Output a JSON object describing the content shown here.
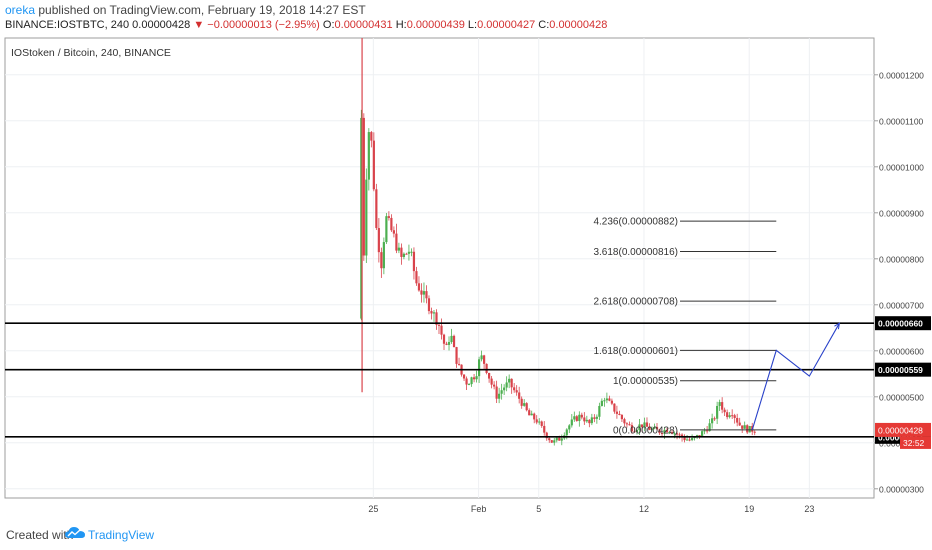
{
  "header": {
    "author": "oreka",
    "published_text": "published on TradingView.com, February 19, 2018 14:27 EST",
    "symbol": "BINANCE:IOSTBTC, 240",
    "last": "0.00000428",
    "change": "▼ −0.00000013 (−2.95%)",
    "o_label": "O:",
    "o_value": "0.00000431",
    "h_label": "H:",
    "h_value": "0.00000439",
    "l_label": "L:",
    "l_value": "0.00000427",
    "c_label": "C:",
    "c_value": "0.00000428"
  },
  "footer": {
    "created_with": "Created with",
    "brand": "TradingView",
    "logo_icon": "tradingview-cloud-icon"
  },
  "chart_data": {
    "type": "candlestick",
    "title": "IOStoken / Bitcoin, 240, BINANCE",
    "ylim": [
      2.8e-06,
      1.28e-05
    ],
    "y_ticks": [
      "0.00000300",
      "0.00000400",
      "0.00000500",
      "0.00000600",
      "0.00000700",
      "0.00000800",
      "0.00000900",
      "0.00001000",
      "0.00001100",
      "0.00001200"
    ],
    "x_ticks": [
      {
        "label": "25",
        "day": 25
      },
      {
        "label": "Feb",
        "day": 32
      },
      {
        "label": "5",
        "day": 36
      },
      {
        "label": "12",
        "day": 43
      },
      {
        "label": "19",
        "day": 50
      },
      {
        "label": "23",
        "day": 54
      }
    ],
    "xlim_day": [
      0.5,
      58.3
    ],
    "price_path": [
      [
        24.2,
        6.7
      ],
      [
        24.3,
        12.7
      ],
      [
        24.5,
        7.8
      ],
      [
        24.8,
        10.9
      ],
      [
        25.1,
        10.4
      ],
      [
        25.3,
        8.8
      ],
      [
        25.7,
        7.9
      ],
      [
        26.0,
        8.9
      ],
      [
        26.5,
        8.5
      ],
      [
        27.0,
        8.0
      ],
      [
        27.6,
        8.2
      ],
      [
        28.0,
        7.5
      ],
      [
        28.5,
        7.2
      ],
      [
        29.0,
        6.9
      ],
      [
        29.5,
        6.6
      ],
      [
        30.0,
        6.0
      ],
      [
        30.3,
        6.4
      ],
      [
        30.6,
        5.9
      ],
      [
        31.0,
        5.5
      ],
      [
        31.4,
        5.3
      ],
      [
        31.7,
        5.4
      ],
      [
        32.0,
        5.5
      ],
      [
        32.3,
        5.9
      ],
      [
        32.6,
        5.7
      ],
      [
        33.0,
        5.3
      ],
      [
        33.4,
        5.0
      ],
      [
        33.8,
        5.2
      ],
      [
        34.2,
        5.3
      ],
      [
        34.6,
        5.1
      ],
      [
        35.0,
        4.9
      ],
      [
        35.5,
        4.6
      ],
      [
        36.0,
        4.5
      ],
      [
        36.6,
        4.2
      ],
      [
        37.1,
        4.0
      ],
      [
        37.6,
        4.1
      ],
      [
        38.0,
        4.3
      ],
      [
        38.5,
        4.5
      ],
      [
        39.0,
        4.6
      ],
      [
        39.5,
        4.4
      ],
      [
        40.0,
        4.6
      ],
      [
        40.5,
        5.0
      ],
      [
        41.0,
        4.8
      ],
      [
        41.5,
        4.6
      ],
      [
        42.0,
        4.4
      ],
      [
        42.5,
        4.3
      ],
      [
        43.0,
        4.4
      ],
      [
        43.6,
        4.3
      ],
      [
        44.2,
        4.25
      ],
      [
        44.8,
        4.3
      ],
      [
        45.3,
        4.2
      ],
      [
        45.8,
        4.1
      ],
      [
        46.3,
        4.05
      ],
      [
        46.8,
        4.15
      ],
      [
        47.3,
        4.3
      ],
      [
        47.8,
        4.5
      ],
      [
        48.2,
        4.9
      ],
      [
        48.6,
        4.6
      ],
      [
        49.0,
        4.7
      ],
      [
        49.5,
        4.4
      ],
      [
        50.0,
        4.3
      ],
      [
        50.4,
        4.28
      ]
    ],
    "last_price": "0.00000428",
    "countdown": "32:52",
    "horizontal_levels": [
      {
        "price": 6.6,
        "label": "0.00000660"
      },
      {
        "price": 5.59,
        "label": "0.00000559"
      },
      {
        "price": 4.13,
        "label": "0.00000413"
      }
    ],
    "fib_levels": [
      {
        "ratio": "4.236",
        "value": 8.82,
        "label": "4.236(0.00000882)"
      },
      {
        "ratio": "3.618",
        "value": 8.16,
        "label": "3.618(0.00000816)"
      },
      {
        "ratio": "2.618",
        "value": 7.08,
        "label": "2.618(0.00000708)"
      },
      {
        "ratio": "1.618",
        "value": 6.01,
        "label": "1.618(0.00000601)"
      },
      {
        "ratio": "1",
        "value": 5.35,
        "label": "1(0.00000535)"
      },
      {
        "ratio": "0",
        "value": 4.28,
        "label": "0(0.00000428)"
      }
    ],
    "fib_x_day": [
      44.2,
      51.8
    ],
    "projection_path": [
      [
        50.2,
        4.28
      ],
      [
        51.8,
        6.01
      ],
      [
        54.0,
        5.45
      ],
      [
        56.0,
        6.6
      ]
    ]
  }
}
